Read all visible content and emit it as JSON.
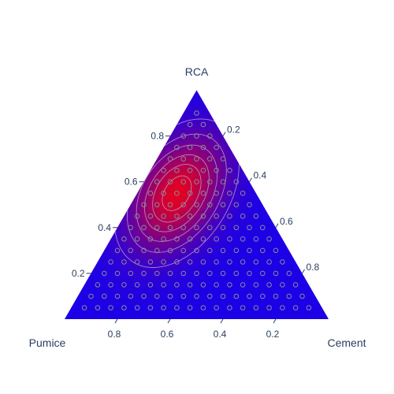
{
  "chart_data": {
    "type": "ternary-contour",
    "title": "",
    "axes": {
      "a": {
        "title": "RCA",
        "ticks": [
          "0.2",
          "0.4",
          "0.6",
          "0.8"
        ]
      },
      "b": {
        "title": "Pumice",
        "ticks": [
          "0.2",
          "0.4",
          "0.6",
          "0.8"
        ]
      },
      "c": {
        "title": "Cement",
        "ticks": [
          "0.2",
          "0.4",
          "0.6",
          "0.8"
        ]
      }
    },
    "grid": false,
    "legend": "none",
    "colorscale": [
      "#1d00e6",
      "#e30022"
    ],
    "contour_levels": [
      0.15,
      0.3,
      0.45,
      0.6,
      0.75,
      0.9
    ],
    "peak": {
      "a": 0.55,
      "b": 0.3,
      "c": 0.15
    },
    "sample_point_spacing": 0.05,
    "sample_point_color": "#8a8a9a"
  }
}
